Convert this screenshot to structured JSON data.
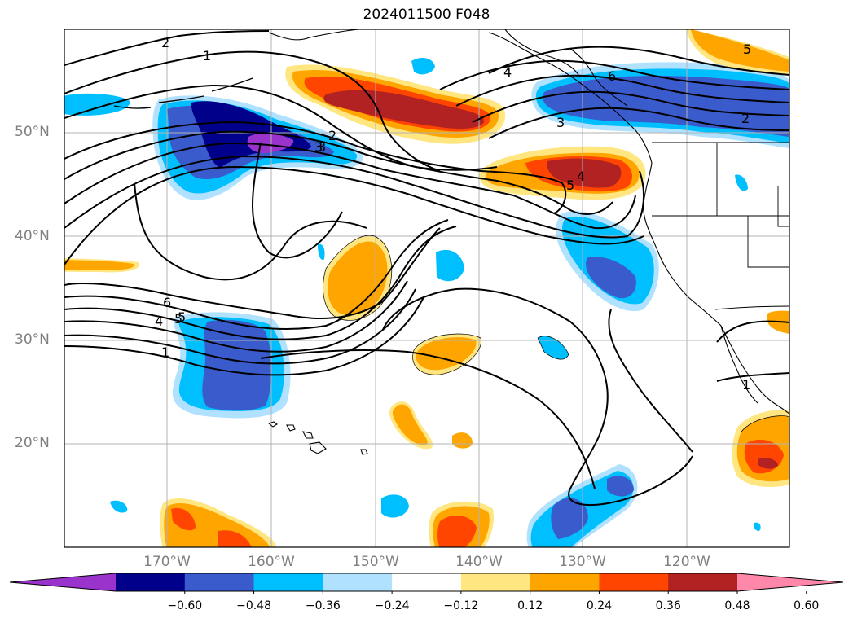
{
  "title": "2024011500 F048",
  "map": {
    "lat_labels": [
      "50°N",
      "40°N",
      "30°N",
      "20°N"
    ],
    "lon_labels": [
      "170°W",
      "160°W",
      "150°W",
      "140°W",
      "130°W",
      "120°W"
    ],
    "contour_labels": [
      "2",
      "1",
      "6",
      "4",
      "5",
      "3",
      "2",
      "3",
      "4",
      "5",
      "6",
      "5",
      "4",
      "1",
      "2",
      "3",
      "5",
      "1"
    ]
  },
  "colorbar": {
    "ticks": [
      "−0.60",
      "−0.48",
      "−0.36",
      "−0.24",
      "−0.12",
      "0.12",
      "0.24",
      "0.36",
      "0.48",
      "0.60"
    ],
    "colors": [
      "#9933cc",
      "#00008b",
      "#3a5bcc",
      "#00bfff",
      "#b0e2ff",
      "#ffffff",
      "#ffe680",
      "#ffa500",
      "#ff4500",
      "#b22222",
      "#ff88aa"
    ]
  }
}
